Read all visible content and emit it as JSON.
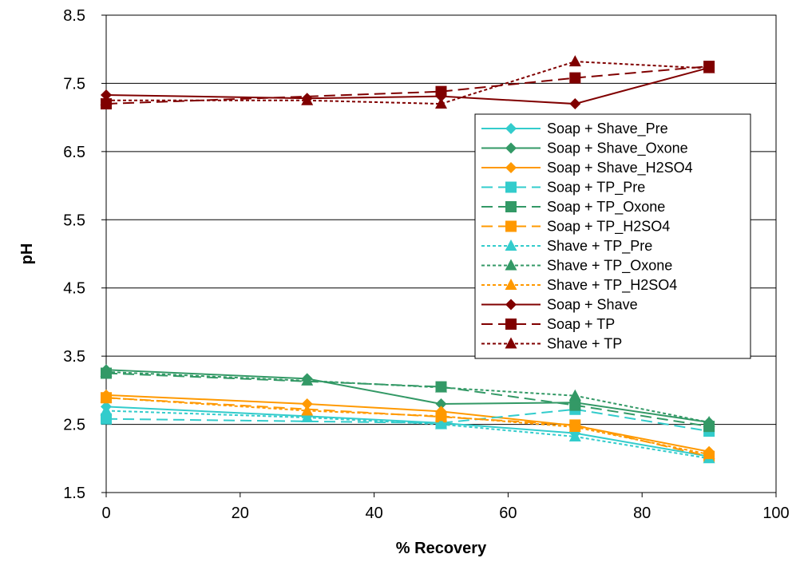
{
  "chart_data": {
    "type": "line",
    "title": "",
    "xlabel": "% Recovery",
    "ylabel": "pH",
    "xlim": [
      0,
      100
    ],
    "ylim": [
      1.5,
      8.5
    ],
    "xticks": [
      0,
      20,
      40,
      60,
      80,
      100
    ],
    "yticks": [
      1.5,
      2.5,
      3.5,
      4.5,
      5.5,
      6.5,
      7.5,
      8.5
    ],
    "xtick_labels": [
      "0",
      "20",
      "40",
      "60",
      "80",
      "100"
    ],
    "ytick_labels": [
      "1.5",
      "2.5",
      "3.5",
      "4.5",
      "5.5",
      "6.5",
      "7.5",
      "8.5"
    ],
    "grid": "horizontal major lines",
    "legend_position": "right",
    "series": [
      {
        "name": "Soap + Shave_Pre",
        "color": "#33CCCC",
        "marker": "diamond",
        "dash": "solid",
        "points": [
          [
            0,
            2.76
          ],
          [
            30,
            2.62
          ],
          [
            50,
            2.52
          ],
          [
            70,
            2.37
          ],
          [
            90,
            2.03
          ]
        ]
      },
      {
        "name": "Soap + Shave_Oxone",
        "color": "#339966",
        "marker": "diamond",
        "dash": "solid",
        "points": [
          [
            0,
            3.3
          ],
          [
            30,
            3.17
          ],
          [
            50,
            2.8
          ],
          [
            70,
            2.82
          ],
          [
            90,
            2.53
          ]
        ]
      },
      {
        "name": "Soap + Shave_H2SO4",
        "color": "#FF9900",
        "marker": "diamond",
        "dash": "solid",
        "points": [
          [
            0,
            2.93
          ],
          [
            30,
            2.8
          ],
          [
            50,
            2.69
          ],
          [
            70,
            2.48
          ],
          [
            90,
            2.1
          ]
        ]
      },
      {
        "name": "Soap + TP_Pre",
        "color": "#33CCCC",
        "marker": "square",
        "dash": "longdash",
        "points": [
          [
            0,
            2.58
          ],
          [
            50,
            2.52
          ],
          [
            70,
            2.72
          ],
          [
            90,
            2.4
          ]
        ]
      },
      {
        "name": "Soap + TP_Oxone",
        "color": "#339966",
        "marker": "square",
        "dash": "longdash",
        "points": [
          [
            0,
            3.25
          ],
          [
            50,
            3.05
          ],
          [
            70,
            2.78
          ],
          [
            90,
            2.47
          ]
        ]
      },
      {
        "name": "Soap + TP_H2SO4",
        "color": "#FF9900",
        "marker": "square",
        "dash": "longdash",
        "points": [
          [
            0,
            2.89
          ],
          [
            50,
            2.61
          ],
          [
            70,
            2.49
          ],
          [
            90,
            2.03
          ]
        ]
      },
      {
        "name": "Shave + TP_Pre",
        "color": "#33CCCC",
        "marker": "triangle",
        "dash": "dotted",
        "points": [
          [
            0,
            2.7
          ],
          [
            30,
            2.6
          ],
          [
            50,
            2.5
          ],
          [
            70,
            2.32
          ],
          [
            90,
            2.0
          ]
        ]
      },
      {
        "name": "Shave + TP_Oxone",
        "color": "#339966",
        "marker": "triangle",
        "dash": "dotted",
        "points": [
          [
            0,
            3.27
          ],
          [
            30,
            3.14
          ],
          [
            50,
            3.04
          ],
          [
            70,
            2.92
          ],
          [
            90,
            2.53
          ]
        ]
      },
      {
        "name": "Shave + TP_H2SO4",
        "color": "#FF9900",
        "marker": "triangle",
        "dash": "dotted",
        "points": [
          [
            0,
            2.89
          ],
          [
            30,
            2.7
          ],
          [
            50,
            2.62
          ],
          [
            70,
            2.46
          ],
          [
            90,
            2.06
          ]
        ]
      },
      {
        "name": "Soap + Shave",
        "color": "#800000",
        "marker": "diamond",
        "dash": "solid",
        "points": [
          [
            0,
            7.33
          ],
          [
            30,
            7.28
          ],
          [
            50,
            7.31
          ],
          [
            70,
            7.2
          ],
          [
            90,
            7.73
          ]
        ]
      },
      {
        "name": "Soap + TP",
        "color": "#800000",
        "marker": "square",
        "dash": "longdash",
        "points": [
          [
            0,
            7.2
          ],
          [
            50,
            7.38
          ],
          [
            70,
            7.58
          ],
          [
            90,
            7.75
          ]
        ]
      },
      {
        "name": "Shave + TP",
        "color": "#800000",
        "marker": "triangle",
        "dash": "dotted",
        "points": [
          [
            0,
            7.25
          ],
          [
            30,
            7.25
          ],
          [
            50,
            7.2
          ],
          [
            70,
            7.82
          ],
          [
            90,
            7.72
          ]
        ]
      }
    ]
  }
}
